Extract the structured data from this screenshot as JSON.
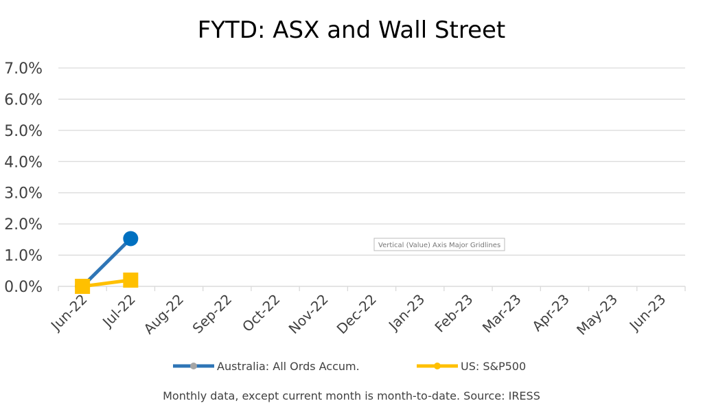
{
  "chart_data": {
    "type": "line",
    "title": "FYTD: ASX and Wall Street",
    "categories": [
      "Jun-22",
      "Jul-22",
      "Aug-22",
      "Sep-22",
      "Oct-22",
      "Nov-22",
      "Dec-22",
      "Jan-23",
      "Feb-23",
      "Mar-23",
      "Apr-23",
      "May-23",
      "Jun-23"
    ],
    "series": [
      {
        "name": "Australia: All Ords Accum.",
        "color": "#2e75b6",
        "marker_color": "#0070c0",
        "marker": "circle",
        "values": [
          0,
          1.53,
          null,
          null,
          null,
          null,
          null,
          null,
          null,
          null,
          null,
          null,
          null
        ]
      },
      {
        "name": "US: S&P500",
        "color": "#ffc000",
        "marker_color": "#ffc000",
        "marker": "square",
        "values": [
          0,
          0.2,
          null,
          null,
          null,
          null,
          null,
          null,
          null,
          null,
          null,
          null,
          null
        ]
      }
    ],
    "ylim": [
      0,
      7
    ],
    "yticks": [
      {
        "value": 0,
        "label": "0.0%"
      },
      {
        "value": 1,
        "label": "1.0%"
      },
      {
        "value": 2,
        "label": "2.0%"
      },
      {
        "value": 3,
        "label": "3.0%"
      },
      {
        "value": 4,
        "label": "4.0%"
      },
      {
        "value": 5,
        "label": "5.0%"
      },
      {
        "value": 6,
        "label": "6.0%"
      },
      {
        "value": 7,
        "label": "7.0%"
      }
    ],
    "grid": true,
    "legend": "bottom",
    "tooltip": "Vertical (Value) Axis Major Gridlines",
    "footnote": "Monthly data, except current month is month-to-date.  Source: IRESS"
  }
}
